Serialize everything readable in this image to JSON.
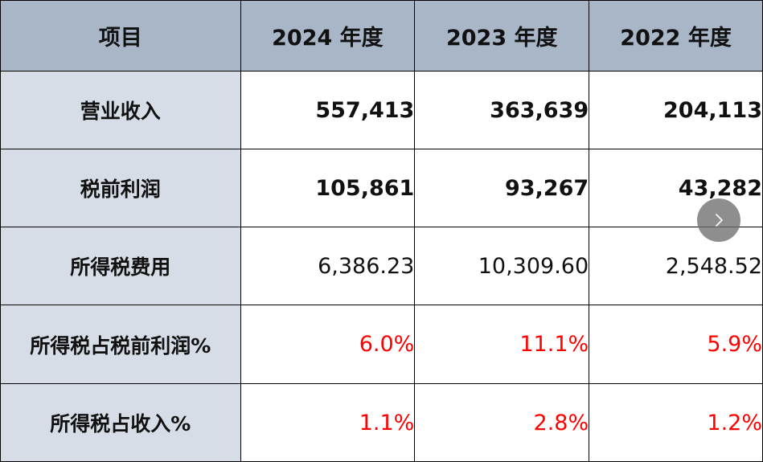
{
  "table": {
    "headers": [
      "项目",
      "2024 年度",
      "2023 年度",
      "2022 年度"
    ],
    "rows": [
      {
        "label": "营业收入",
        "values": [
          "557,413",
          "363,639",
          "204,113"
        ]
      },
      {
        "label": "税前利润",
        "values": [
          "105,861",
          "93,267",
          "43,282"
        ]
      },
      {
        "label": "所得税费用",
        "values": [
          "6,386.23",
          "10,309.60",
          "2,548.52"
        ]
      },
      {
        "label": "所得税占税前利润%",
        "values": [
          "6.0%",
          "11.1%",
          "5.9%"
        ]
      },
      {
        "label": "所得税占收入%",
        "values": [
          "1.1%",
          "2.8%",
          "1.2%"
        ]
      }
    ]
  },
  "colors": {
    "header_bg": "#a8b6c8",
    "label_bg": "#d6dde6",
    "highlight_text": "#ff0000"
  },
  "overlay": {
    "icon": "chevron-right-icon"
  }
}
